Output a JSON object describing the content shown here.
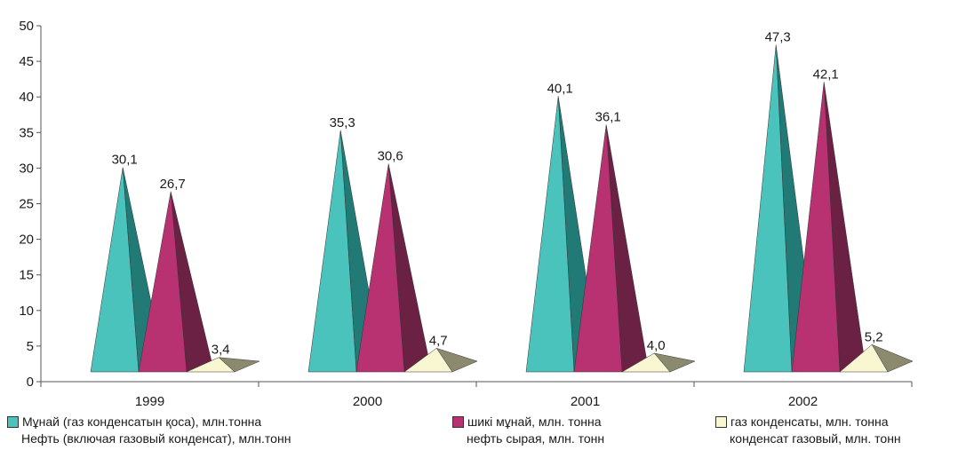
{
  "chart_data": {
    "type": "bar",
    "categories": [
      "1999",
      "2000",
      "2001",
      "2002"
    ],
    "ylim": [
      0,
      50
    ],
    "yticks": [
      "0",
      "5",
      "10",
      "15",
      "20",
      "25",
      "30",
      "35",
      "40",
      "45",
      "50"
    ],
    "series": [
      {
        "name": "Мұнай (газ конденсатын қоса), млн.тонна",
        "name2": "Нефть (включая газовый конденсат), млн.тонн",
        "values": [
          30.1,
          35.3,
          40.1,
          47.3
        ],
        "labels": [
          "30,1",
          "35,3",
          "40,1",
          "47,3"
        ],
        "color": "#4bc3bd",
        "shade": "#217a75"
      },
      {
        "name": "шикі мұнай, млн. тонна",
        "name2": "нефть сырая, млн. тонн",
        "values": [
          26.7,
          30.6,
          36.1,
          42.1
        ],
        "labels": [
          "26,7",
          "30,6",
          "36,1",
          "42,1"
        ],
        "color": "#b83272",
        "shade": "#6b2144"
      },
      {
        "name": "газ конденсаты, млн. тонна",
        "name2": "конденсат газовый, млн. тонн",
        "values": [
          3.4,
          4.7,
          4.0,
          5.2
        ],
        "labels": [
          "3,4",
          "4,7",
          "4,0",
          "5,2"
        ],
        "color": "#f9f6d2",
        "shade": "#8c8a6e"
      }
    ]
  }
}
